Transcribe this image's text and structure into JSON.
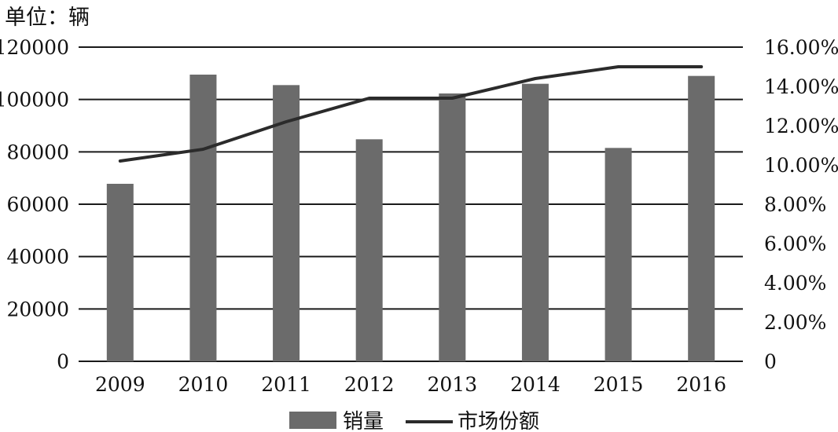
{
  "unit_label": "单位：辆",
  "colors": {
    "bar": "#6b6b6b",
    "line": "#2b2b2b",
    "grid": "#1a1a1a"
  },
  "chart_data": {
    "type": "bar",
    "categories": [
      "2009",
      "2010",
      "2011",
      "2012",
      "2013",
      "2014",
      "2015",
      "2016"
    ],
    "series": [
      {
        "name": "销量",
        "type": "bar",
        "axis": "left",
        "values": [
          67800,
          109500,
          105500,
          84800,
          102300,
          106000,
          81500,
          109000
        ]
      },
      {
        "name": "市场份额",
        "type": "line",
        "axis": "right",
        "values": [
          10.2,
          10.8,
          12.2,
          13.4,
          13.4,
          14.4,
          15.0,
          15.0
        ]
      }
    ],
    "y_left": {
      "ylim": [
        0,
        120000
      ],
      "ticks": [
        "0",
        "20000",
        "40000",
        "60000",
        "80000",
        "100000",
        "120000"
      ]
    },
    "y_right": {
      "ylim": [
        0,
        16
      ],
      "ticks": [
        "0",
        "2.00%",
        "4.00%",
        "6.00%",
        "8.00%",
        "10.00%",
        "12.00%",
        "14.00%",
        "16.00%"
      ]
    },
    "grid": true,
    "legend": "bottom-center"
  }
}
